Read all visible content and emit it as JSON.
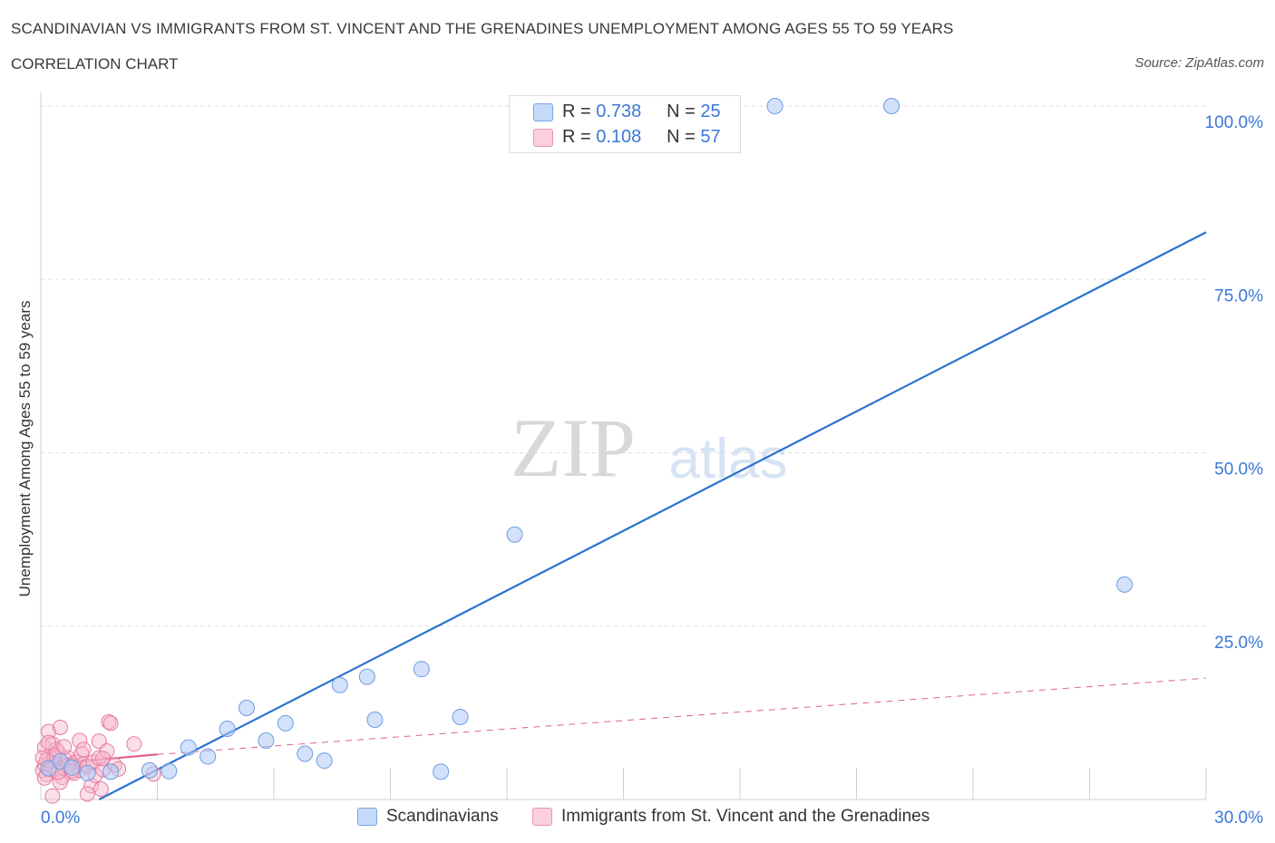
{
  "title": "SCANDINAVIAN VS IMMIGRANTS FROM ST. VINCENT AND THE GRENADINES UNEMPLOYMENT AMONG AGES 55 TO 59 YEARS",
  "subtitle": "CORRELATION CHART",
  "source": "Source: ZipAtlas.com",
  "watermark": {
    "zip": "ZIP",
    "atlas": "atlas"
  },
  "legend_stats": [
    {
      "r_label": "R =",
      "r_value": "0.738",
      "n_label": "N =",
      "n_value": "25"
    },
    {
      "r_label": "R =",
      "r_value": "0.108",
      "n_label": "N =",
      "n_value": "57"
    }
  ],
  "colors": {
    "blue_fill": "#aecbf5",
    "blue_stroke": "#6f9ee0",
    "blue_line": "#2b72d0",
    "pink_fill": "#f6b8cc",
    "pink_stroke": "#e57aa0",
    "pink_line": "#e0628e",
    "grid": "#dddddd",
    "axis_text": "#3b78d8"
  },
  "chart_data": {
    "type": "scatter",
    "xlabel": "",
    "ylabel": "Unemployment Among Ages 55 to 59 years",
    "xlim": [
      0,
      30
    ],
    "ylim": [
      0,
      100
    ],
    "x_tick_labels": [
      "0.0%",
      "30.0%"
    ],
    "y_tick_labels": [
      "100.0%",
      "75.0%",
      "50.0%",
      "25.0%"
    ],
    "y_tick_values": [
      100,
      75,
      50,
      25
    ],
    "legend": [
      "Scandinavians",
      "Immigrants from St. Vincent and the Grenadines"
    ],
    "series": [
      {
        "name": "Scandinavians",
        "r": 0.738,
        "n": 25,
        "points": [
          [
            0.2,
            4.5
          ],
          [
            0.5,
            5.5
          ],
          [
            0.8,
            4.6
          ],
          [
            1.2,
            3.8
          ],
          [
            1.8,
            4.0
          ],
          [
            2.8,
            4.2
          ],
          [
            3.3,
            4.1
          ],
          [
            3.8,
            7.5
          ],
          [
            4.3,
            6.2
          ],
          [
            4.8,
            10.2
          ],
          [
            5.3,
            13.2
          ],
          [
            5.8,
            8.5
          ],
          [
            6.3,
            11.0
          ],
          [
            6.8,
            6.6
          ],
          [
            7.3,
            5.6
          ],
          [
            7.7,
            16.5
          ],
          [
            8.4,
            17.7
          ],
          [
            8.6,
            11.5
          ],
          [
            9.8,
            18.8
          ],
          [
            10.3,
            4.0
          ],
          [
            10.8,
            11.9
          ],
          [
            12.2,
            38.2
          ],
          [
            18.9,
            100.0
          ],
          [
            21.9,
            100.0
          ],
          [
            27.9,
            31.0
          ]
        ],
        "trend": {
          "x": [
            1.5,
            30.0
          ],
          "y": [
            0.0,
            81.8
          ]
        }
      },
      {
        "name": "Immigrants from St. Vincent and the Grenadines",
        "r": 0.108,
        "n": 57,
        "points": [
          [
            0.05,
            4.2
          ],
          [
            0.1,
            5.0
          ],
          [
            0.15,
            3.6
          ],
          [
            0.2,
            6.2
          ],
          [
            0.25,
            5.4
          ],
          [
            0.3,
            4.8
          ],
          [
            0.1,
            7.5
          ],
          [
            0.2,
            9.8
          ],
          [
            0.35,
            5.8
          ],
          [
            0.4,
            4.0
          ],
          [
            0.45,
            6.8
          ],
          [
            0.5,
            5.2
          ],
          [
            0.3,
            8.0
          ],
          [
            0.55,
            3.2
          ],
          [
            0.6,
            4.6
          ],
          [
            0.65,
            5.6
          ],
          [
            0.5,
            2.5
          ],
          [
            0.7,
            6.0
          ],
          [
            0.75,
            4.4
          ],
          [
            0.4,
            7.2
          ],
          [
            0.8,
            5.0
          ],
          [
            0.85,
            3.8
          ],
          [
            0.9,
            5.4
          ],
          [
            0.5,
            10.4
          ],
          [
            1.0,
            4.2
          ],
          [
            1.05,
            6.6
          ],
          [
            0.7,
            4.9
          ],
          [
            1.1,
            5.1
          ],
          [
            0.3,
            0.5
          ],
          [
            1.2,
            4.8
          ],
          [
            1.0,
            8.5
          ],
          [
            1.1,
            7.2
          ],
          [
            1.3,
            2.0
          ],
          [
            1.35,
            5.4
          ],
          [
            1.4,
            3.5
          ],
          [
            1.5,
            6.0
          ],
          [
            1.55,
            1.5
          ],
          [
            1.6,
            4.3
          ],
          [
            1.5,
            8.4
          ],
          [
            1.7,
            7.0
          ],
          [
            1.6,
            5.9
          ],
          [
            1.75,
            11.2
          ],
          [
            1.8,
            11.0
          ],
          [
            1.9,
            5.0
          ],
          [
            2.4,
            8.0
          ],
          [
            1.2,
            0.8
          ],
          [
            0.15,
            5.7
          ],
          [
            0.25,
            4.3
          ],
          [
            0.35,
            6.3
          ],
          [
            0.45,
            3.9
          ],
          [
            0.6,
            7.6
          ],
          [
            0.05,
            6.0
          ],
          [
            0.1,
            3.1
          ],
          [
            0.2,
            8.2
          ],
          [
            0.8,
            4.1
          ],
          [
            2.0,
            4.4
          ],
          [
            2.9,
            3.7
          ]
        ],
        "trend_solid": {
          "x": [
            0.0,
            3.0
          ],
          "y": [
            5.0,
            6.5
          ]
        },
        "trend_dashed": {
          "x": [
            3.0,
            30.0
          ],
          "y": [
            6.5,
            17.5
          ]
        }
      }
    ]
  }
}
